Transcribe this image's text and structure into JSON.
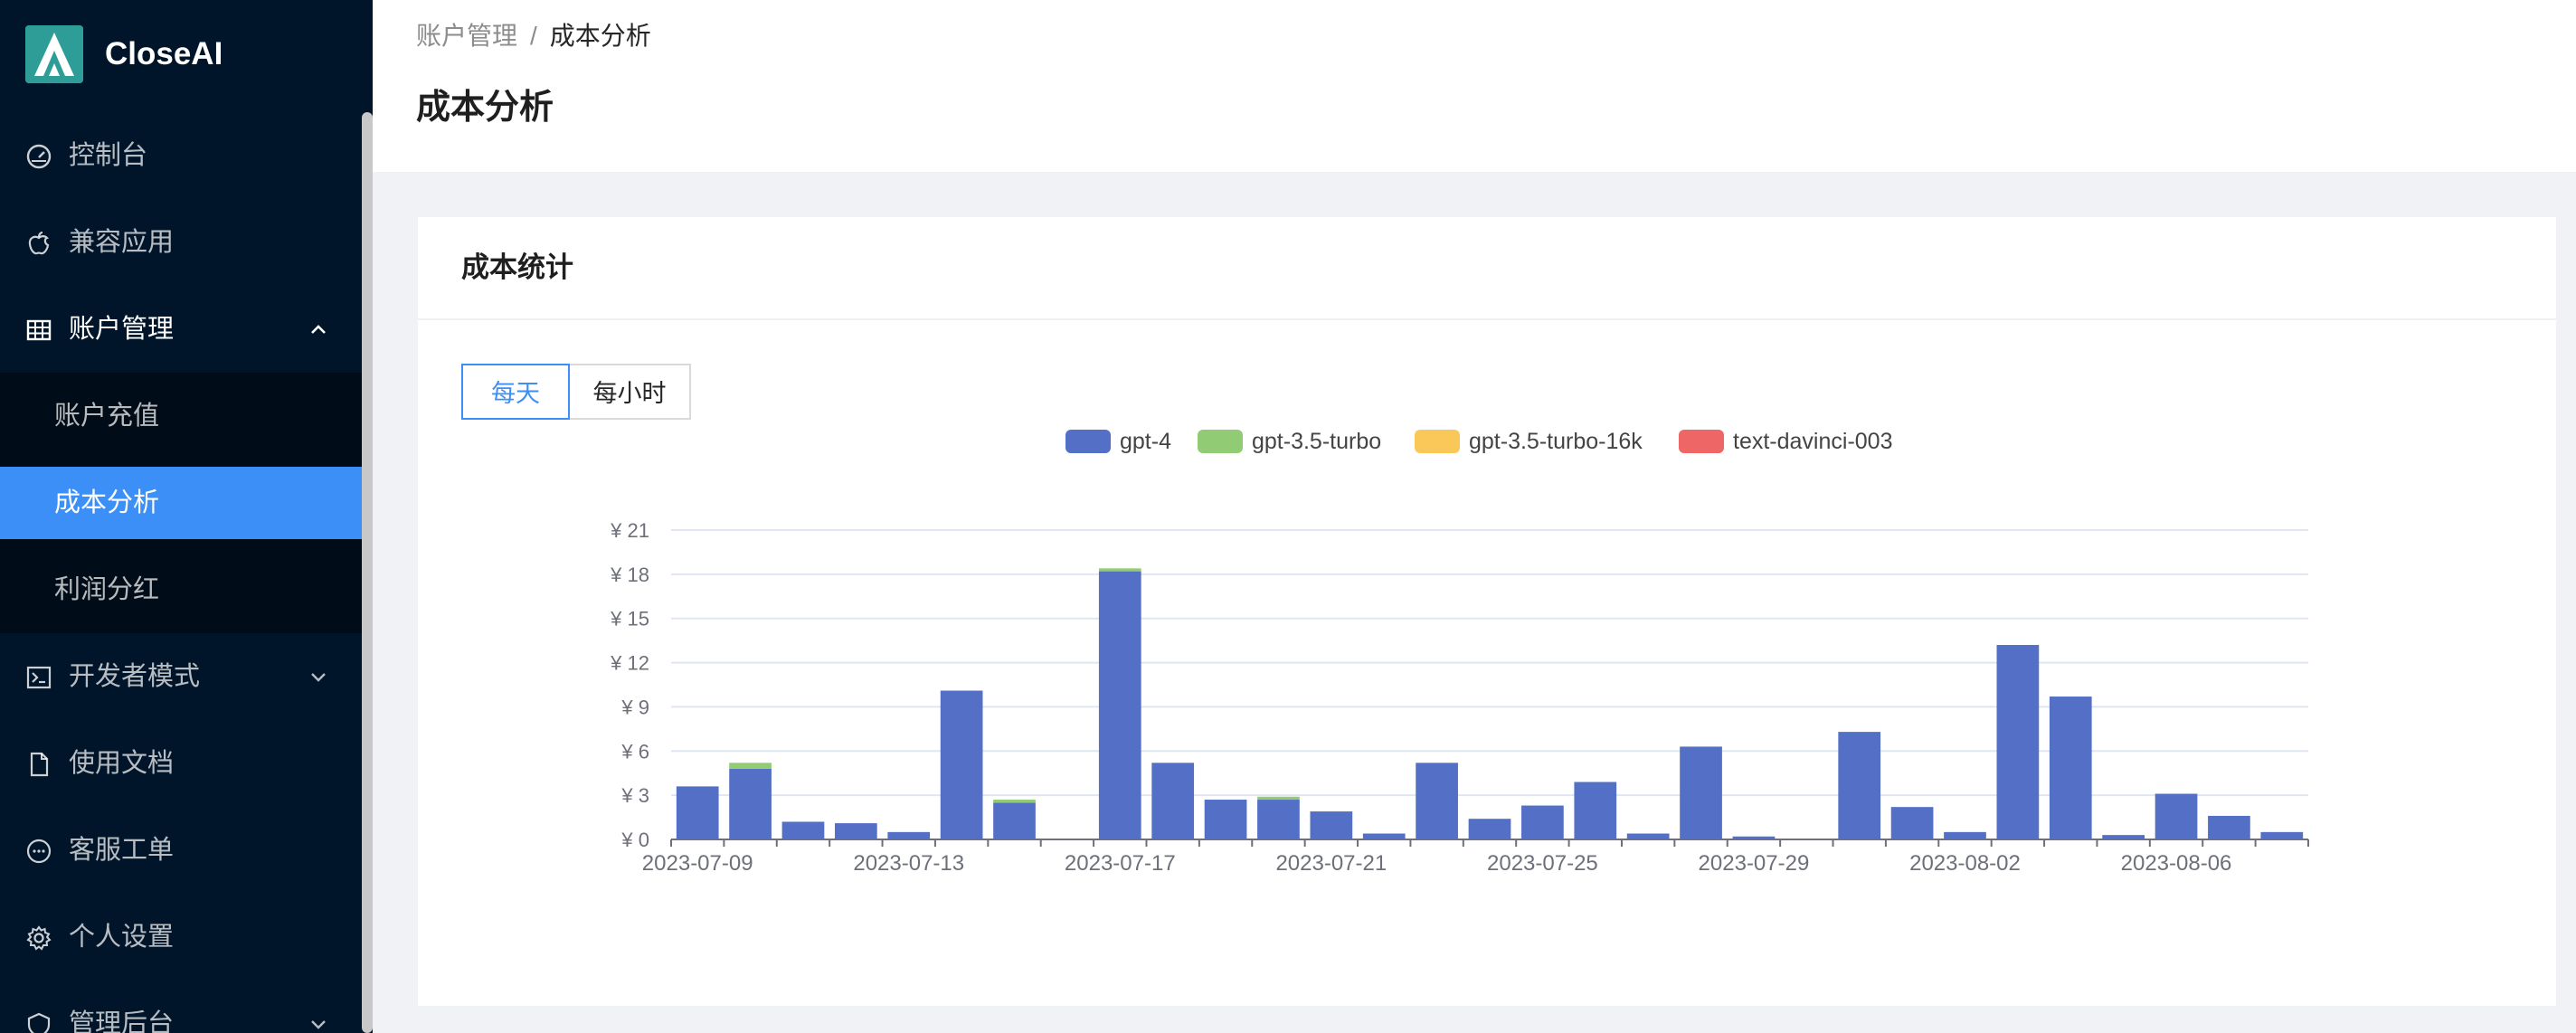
{
  "app": {
    "name": "CloseAI"
  },
  "sidebar": {
    "items": [
      {
        "label": "控制台",
        "icon": "dashboard-icon"
      },
      {
        "label": "兼容应用",
        "icon": "apple-icon"
      },
      {
        "label": "账户管理",
        "icon": "table-icon",
        "expanded": true,
        "children": [
          {
            "label": "账户充值"
          },
          {
            "label": "成本分析",
            "active": true
          },
          {
            "label": "利润分红"
          }
        ]
      },
      {
        "label": "开发者模式",
        "icon": "terminal-icon"
      },
      {
        "label": "使用文档",
        "icon": "file-icon"
      },
      {
        "label": "客服工单",
        "icon": "message-icon"
      },
      {
        "label": "个人设置",
        "icon": "gear-icon"
      },
      {
        "label": "管理后台",
        "icon": "admin-icon"
      }
    ]
  },
  "header": {
    "breadcrumb": [
      "账户管理",
      "成本分析"
    ],
    "breadcrumb_sep": "/",
    "title": "成本分析"
  },
  "card": {
    "title": "成本统计",
    "segments": [
      {
        "label": "每天",
        "active": true
      },
      {
        "label": "每小时",
        "active": false
      }
    ]
  },
  "chart_data": {
    "type": "bar",
    "stacked": true,
    "legend_position": "top-center",
    "grid": true,
    "y_prefix": "¥",
    "ylim": [
      0,
      21
    ],
    "yticks": [
      0,
      3,
      6,
      9,
      12,
      15,
      18,
      21
    ],
    "xtick_labels": [
      "2023-07-09",
      "2023-07-13",
      "2023-07-17",
      "2023-07-21",
      "2023-07-25",
      "2023-07-29",
      "2023-08-02",
      "2023-08-06"
    ],
    "categories": [
      "2023-07-09",
      "2023-07-10",
      "2023-07-11",
      "2023-07-12",
      "2023-07-13",
      "2023-07-14",
      "2023-07-15",
      "2023-07-16",
      "2023-07-17",
      "2023-07-18",
      "2023-07-19",
      "2023-07-20",
      "2023-07-21",
      "2023-07-22",
      "2023-07-23",
      "2023-07-24",
      "2023-07-25",
      "2023-07-26",
      "2023-07-27",
      "2023-07-28",
      "2023-07-29",
      "2023-07-30",
      "2023-07-31",
      "2023-08-01",
      "2023-08-02",
      "2023-08-03",
      "2023-08-04",
      "2023-08-05",
      "2023-08-06",
      "2023-08-07",
      "2023-08-08"
    ],
    "series": [
      {
        "name": "gpt-4",
        "color": "#5470c6",
        "values": [
          3.6,
          4.8,
          1.2,
          1.1,
          0.5,
          10.1,
          2.5,
          0,
          18.2,
          5.2,
          2.7,
          2.7,
          1.9,
          0.4,
          5.2,
          1.4,
          2.3,
          3.9,
          0.4,
          6.3,
          0.2,
          0,
          7.3,
          2.2,
          0.5,
          13.2,
          9.7,
          0.3,
          3.1,
          1.6,
          0.5
        ]
      },
      {
        "name": "gpt-3.5-turbo",
        "color": "#91cc75",
        "values": [
          0,
          0.4,
          0,
          0,
          0,
          0,
          0.2,
          0,
          0.2,
          0,
          0,
          0.2,
          0,
          0,
          0,
          0,
          0,
          0,
          0,
          0,
          0,
          0,
          0,
          0,
          0,
          0,
          0,
          0,
          0,
          0,
          0
        ]
      },
      {
        "name": "gpt-3.5-turbo-16k",
        "color": "#fac858",
        "values": [
          0,
          0,
          0,
          0,
          0,
          0,
          0,
          0,
          0,
          0,
          0,
          0,
          0,
          0,
          0,
          0,
          0,
          0,
          0,
          0,
          0,
          0,
          0,
          0,
          0,
          0,
          0,
          0,
          0,
          0,
          0
        ]
      },
      {
        "name": "text-davinci-003",
        "color": "#ee6666",
        "values": [
          0,
          0,
          0,
          0,
          0,
          0,
          0,
          0,
          0,
          0,
          0,
          0,
          0,
          0,
          0,
          0,
          0,
          0,
          0,
          0,
          0,
          0,
          0,
          0,
          0,
          0,
          0,
          0,
          0,
          0,
          0
        ]
      }
    ]
  }
}
